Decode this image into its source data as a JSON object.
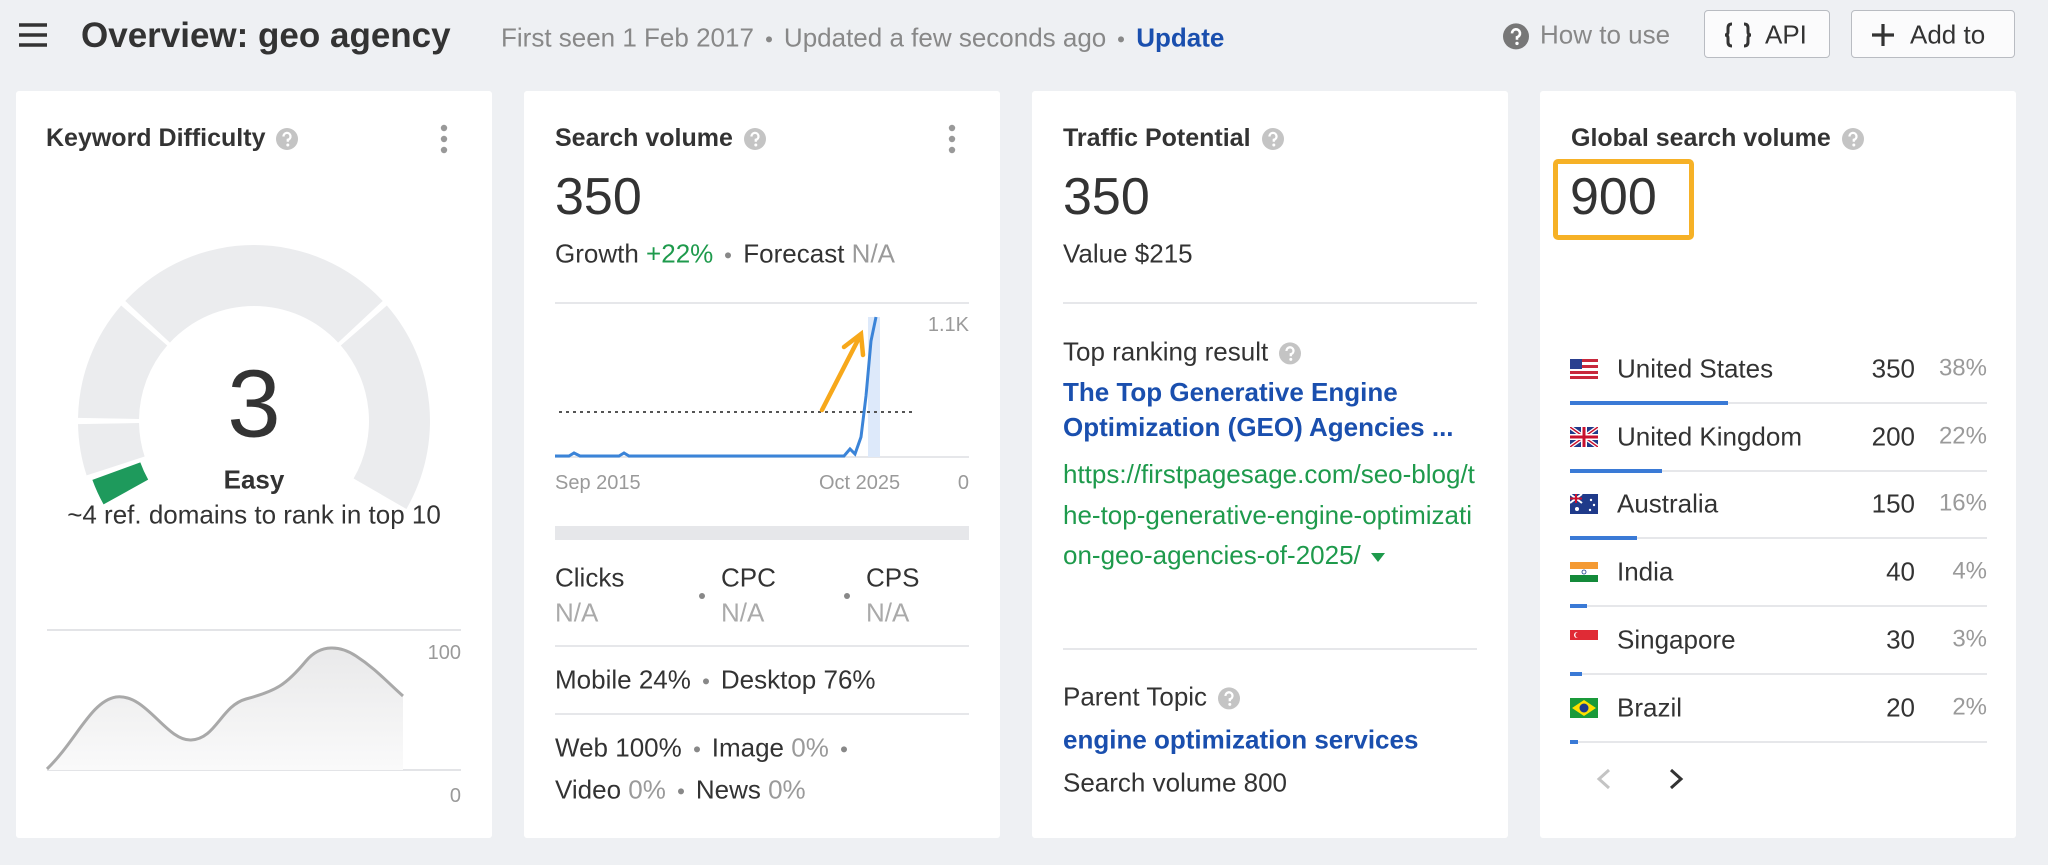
{
  "header": {
    "title": "Overview: geo agency",
    "first_seen": "First seen 1 Feb 2017",
    "updated": "Updated a few seconds ago",
    "update_link": "Update",
    "how_to_use": "How to use",
    "api_button": "API",
    "add_button": "Add to"
  },
  "keyword_difficulty": {
    "title": "Keyword Difficulty",
    "score": "3",
    "label": "Easy",
    "note": "~4 ref. domains to rank in top 10",
    "chart_ymax": "100",
    "chart_ymin": "0"
  },
  "search_volume": {
    "title": "Search volume",
    "value": "350",
    "growth_label": "Growth",
    "growth": "+22%",
    "forecast_label": "Forecast",
    "forecast": "N/A",
    "chart_ymax": "1.1K",
    "chart_ymin": "0",
    "chart_start": "Sep 2015",
    "chart_end": "Oct 2025",
    "metrics": [
      {
        "label": "Clicks",
        "value": "N/A"
      },
      {
        "label": "CPC",
        "value": "N/A"
      },
      {
        "label": "CPS",
        "value": "N/A"
      }
    ],
    "devices": [
      {
        "label": "Mobile",
        "value": "24%"
      },
      {
        "label": "Desktop",
        "value": "76%"
      }
    ],
    "serp": [
      {
        "label": "Web",
        "value": "100%"
      },
      {
        "label": "Image",
        "value": "0%"
      },
      {
        "label": "Video",
        "value": "0%"
      },
      {
        "label": "News",
        "value": "0%"
      }
    ]
  },
  "traffic_potential": {
    "title": "Traffic Potential",
    "value": "350",
    "value_line": "Value $215",
    "top_ranking_label": "Top ranking result",
    "top_result_title": "The Top Generative Engine Optimization (GEO) Agencies ...",
    "top_result_url": "https://firstpagesage.com/seo-blog/the-top-generative-engine-optimization-geo-agencies-of-2025/",
    "parent_topic_label": "Parent Topic",
    "parent_topic": "engine optimization services",
    "parent_volume": "Search volume 800"
  },
  "global_search_volume": {
    "title": "Global search volume",
    "value": "900",
    "countries": [
      {
        "name": "United States",
        "volume": "350",
        "share": "38%"
      },
      {
        "name": "United Kingdom",
        "volume": "200",
        "share": "22%"
      },
      {
        "name": "Australia",
        "volume": "150",
        "share": "16%"
      },
      {
        "name": "India",
        "volume": "40",
        "share": "4%"
      },
      {
        "name": "Singapore",
        "volume": "30",
        "share": "3%"
      },
      {
        "name": "Brazil",
        "volume": "20",
        "share": "2%"
      }
    ]
  }
}
